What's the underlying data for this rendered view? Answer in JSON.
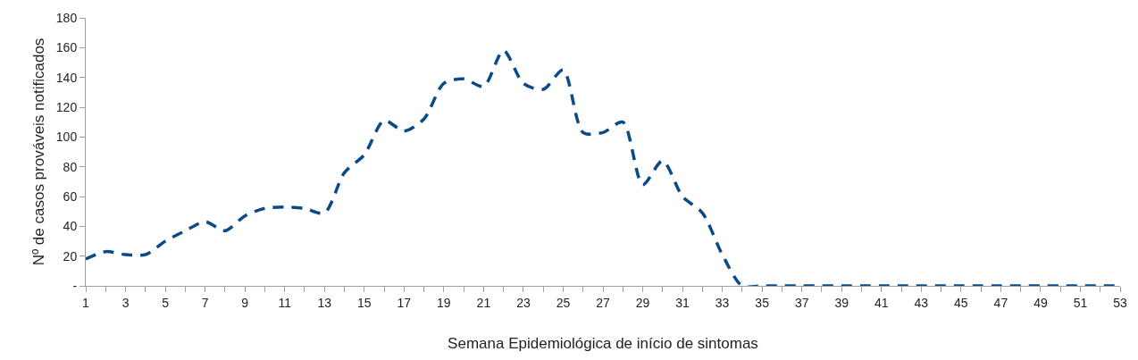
{
  "chart_data": {
    "type": "line",
    "xlabel": "Semana Epidemiológica de início de sintomas",
    "ylabel": "Nº de casos prováveis notificados",
    "x": [
      1,
      2,
      3,
      4,
      5,
      6,
      7,
      8,
      9,
      10,
      11,
      12,
      13,
      14,
      15,
      16,
      17,
      18,
      19,
      20,
      21,
      22,
      23,
      24,
      25,
      26,
      27,
      28,
      29,
      30,
      31,
      32,
      33,
      34,
      35,
      36,
      37,
      38,
      39,
      40,
      41,
      42,
      43,
      44,
      45,
      46,
      47,
      48,
      49,
      50,
      51,
      52,
      53
    ],
    "series": [
      {
        "color": "#0b4a86",
        "values": [
          18,
          23,
          21,
          21,
          30,
          37,
          43,
          37,
          47,
          52,
          53,
          52,
          49,
          76,
          88,
          111,
          104,
          112,
          136,
          139,
          134,
          158,
          136,
          132,
          145,
          103,
          103,
          110,
          68,
          84,
          60,
          49,
          21,
          0,
          0,
          0,
          0,
          0,
          0,
          0,
          0,
          0,
          0,
          0,
          0,
          0,
          0,
          0,
          0,
          0,
          0,
          0,
          0
        ]
      }
    ],
    "xlim": [
      1,
      53
    ],
    "xticks": [
      1,
      {
        "value": 2,
        "label": null
      },
      3,
      {
        "value": 4,
        "label": null
      },
      5,
      {
        "value": 6,
        "label": null
      },
      7,
      {
        "value": 8,
        "label": null
      },
      9,
      {
        "value": 10,
        "label": null
      },
      11,
      {
        "value": 12,
        "label": null
      },
      13,
      {
        "value": 14,
        "label": null
      },
      15,
      {
        "value": 16,
        "label": null
      },
      17,
      {
        "value": 18,
        "label": null
      },
      19,
      {
        "value": 20,
        "label": null
      },
      21,
      {
        "value": 22,
        "label": null
      },
      23,
      {
        "value": 24,
        "label": null
      },
      25,
      {
        "value": 26,
        "label": null
      },
      27,
      {
        "value": 28,
        "label": null
      },
      29,
      {
        "value": 30,
        "label": null
      },
      31,
      {
        "value": 32,
        "label": null
      },
      33,
      {
        "value": 34,
        "label": null
      },
      35,
      {
        "value": 36,
        "label": null
      },
      37,
      {
        "value": 38,
        "label": null
      },
      39,
      {
        "value": 40,
        "label": null
      },
      41,
      {
        "value": 42,
        "label": null
      },
      43,
      {
        "value": 44,
        "label": null
      },
      45,
      {
        "value": 46,
        "label": null
      },
      47,
      {
        "value": 48,
        "label": null
      },
      49,
      {
        "value": 50,
        "label": null
      },
      51,
      {
        "value": 52,
        "label": null
      },
      53
    ],
    "ylim": [
      0,
      180
    ],
    "yticks": [
      {
        "value": 0,
        "label": "-"
      },
      20,
      40,
      60,
      80,
      100,
      120,
      140,
      160,
      180
    ],
    "grid": false,
    "line_style": "dashed",
    "marker": "none"
  }
}
